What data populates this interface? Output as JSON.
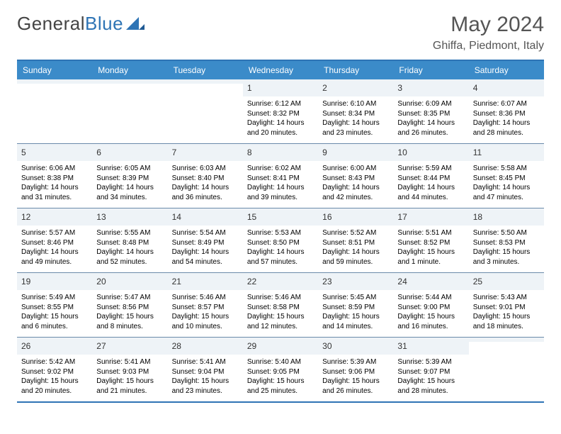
{
  "logo": {
    "text1": "General",
    "text2": "Blue"
  },
  "title": "May 2024",
  "location": "Ghiffa, Piedmont, Italy",
  "header_bg": "#3b8bc9",
  "border_color": "#2e74b5",
  "dayheaders": [
    "Sunday",
    "Monday",
    "Tuesday",
    "Wednesday",
    "Thursday",
    "Friday",
    "Saturday"
  ],
  "weeks": [
    [
      {
        "n": "",
        "sr": "",
        "ss": "",
        "dl": ""
      },
      {
        "n": "",
        "sr": "",
        "ss": "",
        "dl": ""
      },
      {
        "n": "",
        "sr": "",
        "ss": "",
        "dl": ""
      },
      {
        "n": "1",
        "sr": "Sunrise: 6:12 AM",
        "ss": "Sunset: 8:32 PM",
        "dl": "Daylight: 14 hours and 20 minutes."
      },
      {
        "n": "2",
        "sr": "Sunrise: 6:10 AM",
        "ss": "Sunset: 8:34 PM",
        "dl": "Daylight: 14 hours and 23 minutes."
      },
      {
        "n": "3",
        "sr": "Sunrise: 6:09 AM",
        "ss": "Sunset: 8:35 PM",
        "dl": "Daylight: 14 hours and 26 minutes."
      },
      {
        "n": "4",
        "sr": "Sunrise: 6:07 AM",
        "ss": "Sunset: 8:36 PM",
        "dl": "Daylight: 14 hours and 28 minutes."
      }
    ],
    [
      {
        "n": "5",
        "sr": "Sunrise: 6:06 AM",
        "ss": "Sunset: 8:38 PM",
        "dl": "Daylight: 14 hours and 31 minutes."
      },
      {
        "n": "6",
        "sr": "Sunrise: 6:05 AM",
        "ss": "Sunset: 8:39 PM",
        "dl": "Daylight: 14 hours and 34 minutes."
      },
      {
        "n": "7",
        "sr": "Sunrise: 6:03 AM",
        "ss": "Sunset: 8:40 PM",
        "dl": "Daylight: 14 hours and 36 minutes."
      },
      {
        "n": "8",
        "sr": "Sunrise: 6:02 AM",
        "ss": "Sunset: 8:41 PM",
        "dl": "Daylight: 14 hours and 39 minutes."
      },
      {
        "n": "9",
        "sr": "Sunrise: 6:00 AM",
        "ss": "Sunset: 8:43 PM",
        "dl": "Daylight: 14 hours and 42 minutes."
      },
      {
        "n": "10",
        "sr": "Sunrise: 5:59 AM",
        "ss": "Sunset: 8:44 PM",
        "dl": "Daylight: 14 hours and 44 minutes."
      },
      {
        "n": "11",
        "sr": "Sunrise: 5:58 AM",
        "ss": "Sunset: 8:45 PM",
        "dl": "Daylight: 14 hours and 47 minutes."
      }
    ],
    [
      {
        "n": "12",
        "sr": "Sunrise: 5:57 AM",
        "ss": "Sunset: 8:46 PM",
        "dl": "Daylight: 14 hours and 49 minutes."
      },
      {
        "n": "13",
        "sr": "Sunrise: 5:55 AM",
        "ss": "Sunset: 8:48 PM",
        "dl": "Daylight: 14 hours and 52 minutes."
      },
      {
        "n": "14",
        "sr": "Sunrise: 5:54 AM",
        "ss": "Sunset: 8:49 PM",
        "dl": "Daylight: 14 hours and 54 minutes."
      },
      {
        "n": "15",
        "sr": "Sunrise: 5:53 AM",
        "ss": "Sunset: 8:50 PM",
        "dl": "Daylight: 14 hours and 57 minutes."
      },
      {
        "n": "16",
        "sr": "Sunrise: 5:52 AM",
        "ss": "Sunset: 8:51 PM",
        "dl": "Daylight: 14 hours and 59 minutes."
      },
      {
        "n": "17",
        "sr": "Sunrise: 5:51 AM",
        "ss": "Sunset: 8:52 PM",
        "dl": "Daylight: 15 hours and 1 minute."
      },
      {
        "n": "18",
        "sr": "Sunrise: 5:50 AM",
        "ss": "Sunset: 8:53 PM",
        "dl": "Daylight: 15 hours and 3 minutes."
      }
    ],
    [
      {
        "n": "19",
        "sr": "Sunrise: 5:49 AM",
        "ss": "Sunset: 8:55 PM",
        "dl": "Daylight: 15 hours and 6 minutes."
      },
      {
        "n": "20",
        "sr": "Sunrise: 5:47 AM",
        "ss": "Sunset: 8:56 PM",
        "dl": "Daylight: 15 hours and 8 minutes."
      },
      {
        "n": "21",
        "sr": "Sunrise: 5:46 AM",
        "ss": "Sunset: 8:57 PM",
        "dl": "Daylight: 15 hours and 10 minutes."
      },
      {
        "n": "22",
        "sr": "Sunrise: 5:46 AM",
        "ss": "Sunset: 8:58 PM",
        "dl": "Daylight: 15 hours and 12 minutes."
      },
      {
        "n": "23",
        "sr": "Sunrise: 5:45 AM",
        "ss": "Sunset: 8:59 PM",
        "dl": "Daylight: 15 hours and 14 minutes."
      },
      {
        "n": "24",
        "sr": "Sunrise: 5:44 AM",
        "ss": "Sunset: 9:00 PM",
        "dl": "Daylight: 15 hours and 16 minutes."
      },
      {
        "n": "25",
        "sr": "Sunrise: 5:43 AM",
        "ss": "Sunset: 9:01 PM",
        "dl": "Daylight: 15 hours and 18 minutes."
      }
    ],
    [
      {
        "n": "26",
        "sr": "Sunrise: 5:42 AM",
        "ss": "Sunset: 9:02 PM",
        "dl": "Daylight: 15 hours and 20 minutes."
      },
      {
        "n": "27",
        "sr": "Sunrise: 5:41 AM",
        "ss": "Sunset: 9:03 PM",
        "dl": "Daylight: 15 hours and 21 minutes."
      },
      {
        "n": "28",
        "sr": "Sunrise: 5:41 AM",
        "ss": "Sunset: 9:04 PM",
        "dl": "Daylight: 15 hours and 23 minutes."
      },
      {
        "n": "29",
        "sr": "Sunrise: 5:40 AM",
        "ss": "Sunset: 9:05 PM",
        "dl": "Daylight: 15 hours and 25 minutes."
      },
      {
        "n": "30",
        "sr": "Sunrise: 5:39 AM",
        "ss": "Sunset: 9:06 PM",
        "dl": "Daylight: 15 hours and 26 minutes."
      },
      {
        "n": "31",
        "sr": "Sunrise: 5:39 AM",
        "ss": "Sunset: 9:07 PM",
        "dl": "Daylight: 15 hours and 28 minutes."
      },
      {
        "n": "",
        "sr": "",
        "ss": "",
        "dl": ""
      }
    ]
  ]
}
